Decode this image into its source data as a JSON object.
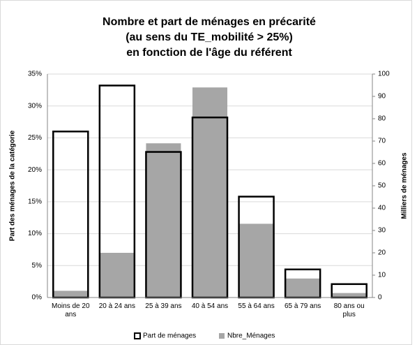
{
  "chart_data": {
    "type": "bar",
    "title": [
      "Nombre et part de ménages en précarité",
      "(au sens du TE_mobilité > 25%)",
      "en fonction de l'âge du référent"
    ],
    "ylabel": "Part des ménages de la catégorie",
    "y2label": "Milliers de ménages",
    "categories": [
      "Moins de 20 ans",
      "20 à 24 ans",
      "25 à 39 ans",
      "40 à 54 ans",
      "55 à 64 ans",
      "65 à 79 ans",
      "80 ans ou plus"
    ],
    "series": [
      {
        "name": "Part de ménages",
        "color": "#000000",
        "style": "outline",
        "axis": "y",
        "values": [
          26.0,
          33.2,
          22.8,
          28.2,
          15.8,
          4.4,
          2.1
        ]
      },
      {
        "name": "Nbre_Ménages",
        "color": "#a6a6a6",
        "style": "filled",
        "axis": "y2",
        "values": [
          3,
          20,
          69,
          94,
          33,
          8.5,
          2
        ]
      }
    ],
    "ylim": [
      0,
      35
    ],
    "yticks": [
      {
        "value": 0,
        "label": "0%"
      },
      {
        "value": 5,
        "label": "5%"
      },
      {
        "value": 10,
        "label": "10%"
      },
      {
        "value": 15,
        "label": "15%"
      },
      {
        "value": 20,
        "label": "20%"
      },
      {
        "value": 25,
        "label": "25%"
      },
      {
        "value": 30,
        "label": "30%"
      },
      {
        "value": 35,
        "label": "35%"
      }
    ],
    "y2lim": [
      0,
      100
    ],
    "y2ticks": [
      0,
      10,
      20,
      30,
      40,
      50,
      60,
      70,
      80,
      90,
      100
    ],
    "grid": true,
    "legend": "bottom"
  }
}
